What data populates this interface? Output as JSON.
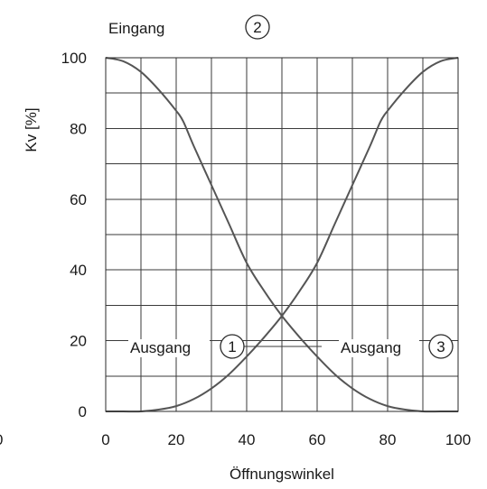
{
  "chart_data": {
    "type": "line",
    "title": "",
    "xlabel": "Öffnungswinkel",
    "ylabel": "Kv [%]",
    "xlim": [
      0,
      100
    ],
    "ylim": [
      0,
      100
    ],
    "x_ticks": [
      "0",
      "20",
      "40",
      "60",
      "80",
      "100"
    ],
    "y_ticks": [
      "0",
      "20",
      "40",
      "60",
      "80",
      "100"
    ],
    "left_edge_label": "0",
    "grid": true,
    "grid_step_x": 10,
    "grid_step_y": 10,
    "series": [
      {
        "x": [
          0,
          5,
          10,
          15,
          20,
          22,
          25,
          30,
          35,
          40,
          45,
          50,
          55,
          60,
          65,
          70,
          75,
          80,
          85,
          90,
          95,
          100
        ],
        "y": [
          100,
          99,
          96,
          91,
          85,
          82,
          75,
          64,
          53,
          42,
          34,
          27,
          21,
          15.5,
          10.5,
          6.5,
          3.5,
          1.5,
          0.5,
          0,
          0,
          0
        ]
      },
      {
        "x": [
          0,
          5,
          10,
          15,
          20,
          25,
          30,
          35,
          40,
          45,
          50,
          55,
          60,
          65,
          70,
          75,
          78,
          80,
          85,
          90,
          95,
          100
        ],
        "y": [
          0,
          0,
          0,
          0.5,
          1.5,
          3.5,
          6.5,
          10.5,
          15.5,
          21,
          27,
          34,
          42,
          53,
          64,
          75,
          82,
          85,
          91,
          96,
          99,
          100
        ]
      }
    ],
    "annotations": [
      {
        "text": "Eingang",
        "badge": "2",
        "x": 10,
        "y": 110
      },
      {
        "text": "Ausgang",
        "badge": "1",
        "x": 30,
        "y": 20
      },
      {
        "text": "Ausgang",
        "badge": "3",
        "x": 90,
        "y": 20
      }
    ],
    "line_color": "#555555",
    "grid_color": "#3a3a3a"
  }
}
